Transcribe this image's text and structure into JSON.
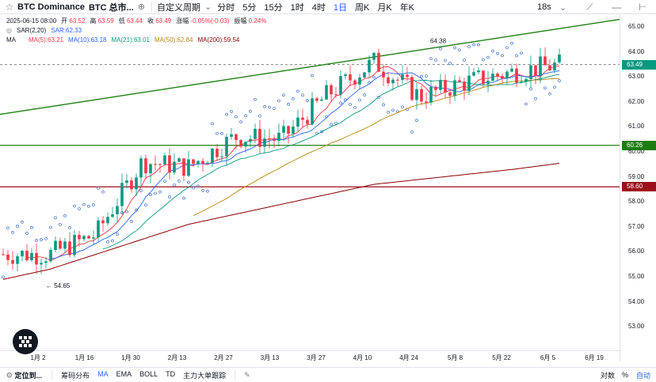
{
  "toolbar": {
    "symbol": "BTC Dominance",
    "market": "BTC 总市...",
    "custom_interval": "自定义周期",
    "intervals": [
      "分时",
      "5分",
      "15分",
      "1时",
      "4时",
      "1日",
      "周K",
      "月K",
      "年K"
    ],
    "active_interval": "1日",
    "countdown": "18s",
    "icons": [
      "star-icon",
      "compare-icon",
      "minus-icon",
      "settings-icon"
    ]
  },
  "legend": {
    "date": "2025-06-15 08:00",
    "open_label": "开",
    "open": "63.52",
    "high_label": "高",
    "high": "63.59",
    "low_label": "低",
    "low": "63.44",
    "close_label": "收",
    "close": "63.49",
    "change_label": "涨幅",
    "change": "-0.05%(-0.03)",
    "amplitude_label": "振幅",
    "amplitude": "0.24%",
    "sar_name": "SAR(2,20)",
    "sar_value": "SAR:62.33",
    "ma_name": "MA",
    "ma": [
      {
        "label": "MA(5):63.21",
        "color": "#f23645"
      },
      {
        "label": "MA(10):63.18",
        "color": "#2962ff"
      },
      {
        "label": "MA(21):63.01",
        "color": "#089981"
      },
      {
        "label": "MA(50):62.84",
        "color": "#b8860b"
      },
      {
        "label": "MA(200):59.54",
        "color": "#8b0000"
      }
    ]
  },
  "price_axis": {
    "ticks": [
      "65.00",
      "64.00",
      "63.00",
      "62.00",
      "61.00",
      "60.00",
      "59.00",
      "58.00",
      "57.00",
      "56.00",
      "55.00",
      "54.00",
      "53.00"
    ],
    "tags": [
      {
        "value": "63.49",
        "color": "#089981"
      },
      {
        "value": "60.26",
        "color": "#1e7d12"
      },
      {
        "value": "58.60",
        "color": "#9c0f1c"
      }
    ]
  },
  "time_axis": {
    "labels": [
      "1月 2",
      "1月 16",
      "1月 30",
      "2月 13",
      "2月 27",
      "3月 13",
      "3月 27",
      "4月 10",
      "4月 24",
      "5月 8",
      "5月 22",
      "6月 5",
      "6月 19"
    ]
  },
  "annotations": {
    "high_mark": "64.38",
    "low_mark": "← 54.65"
  },
  "bottom_bar": {
    "locate": "定位到...",
    "items": [
      "筹码分布",
      "MA",
      "EMA",
      "BOLL",
      "TD",
      "主力大单跟踪"
    ],
    "active": "MA",
    "right": [
      "对数",
      "%",
      "自动"
    ]
  },
  "chart_data": {
    "type": "candlestick",
    "ylim": [
      52.5,
      65.3
    ],
    "x": [
      "1月 2",
      "1月 16",
      "1月 30",
      "2月 13",
      "2月 27",
      "3月 13",
      "3月 27",
      "4月 10",
      "4月 24",
      "5月 8",
      "5月 22",
      "6月 5",
      "6月 15"
    ],
    "close_approx": [
      55.9,
      55.9,
      56.7,
      59.6,
      59.4,
      60.6,
      60.5,
      62.3,
      63.6,
      62.2,
      62.8,
      63.2,
      63.49
    ],
    "ma200_approx": [
      54.9,
      55.3,
      55.9,
      56.5,
      57.1,
      57.5,
      57.9,
      58.3,
      58.7,
      58.9,
      59.1,
      59.3,
      59.54
    ],
    "horizontal_lines": [
      60.26,
      58.6
    ],
    "trendline": {
      "from": [
        "1月 2",
        61.5
      ],
      "to": [
        "6月 19",
        65.3
      ]
    },
    "colors": {
      "up": "#089981",
      "down": "#f23645",
      "sar": "#5b7fd6"
    }
  }
}
